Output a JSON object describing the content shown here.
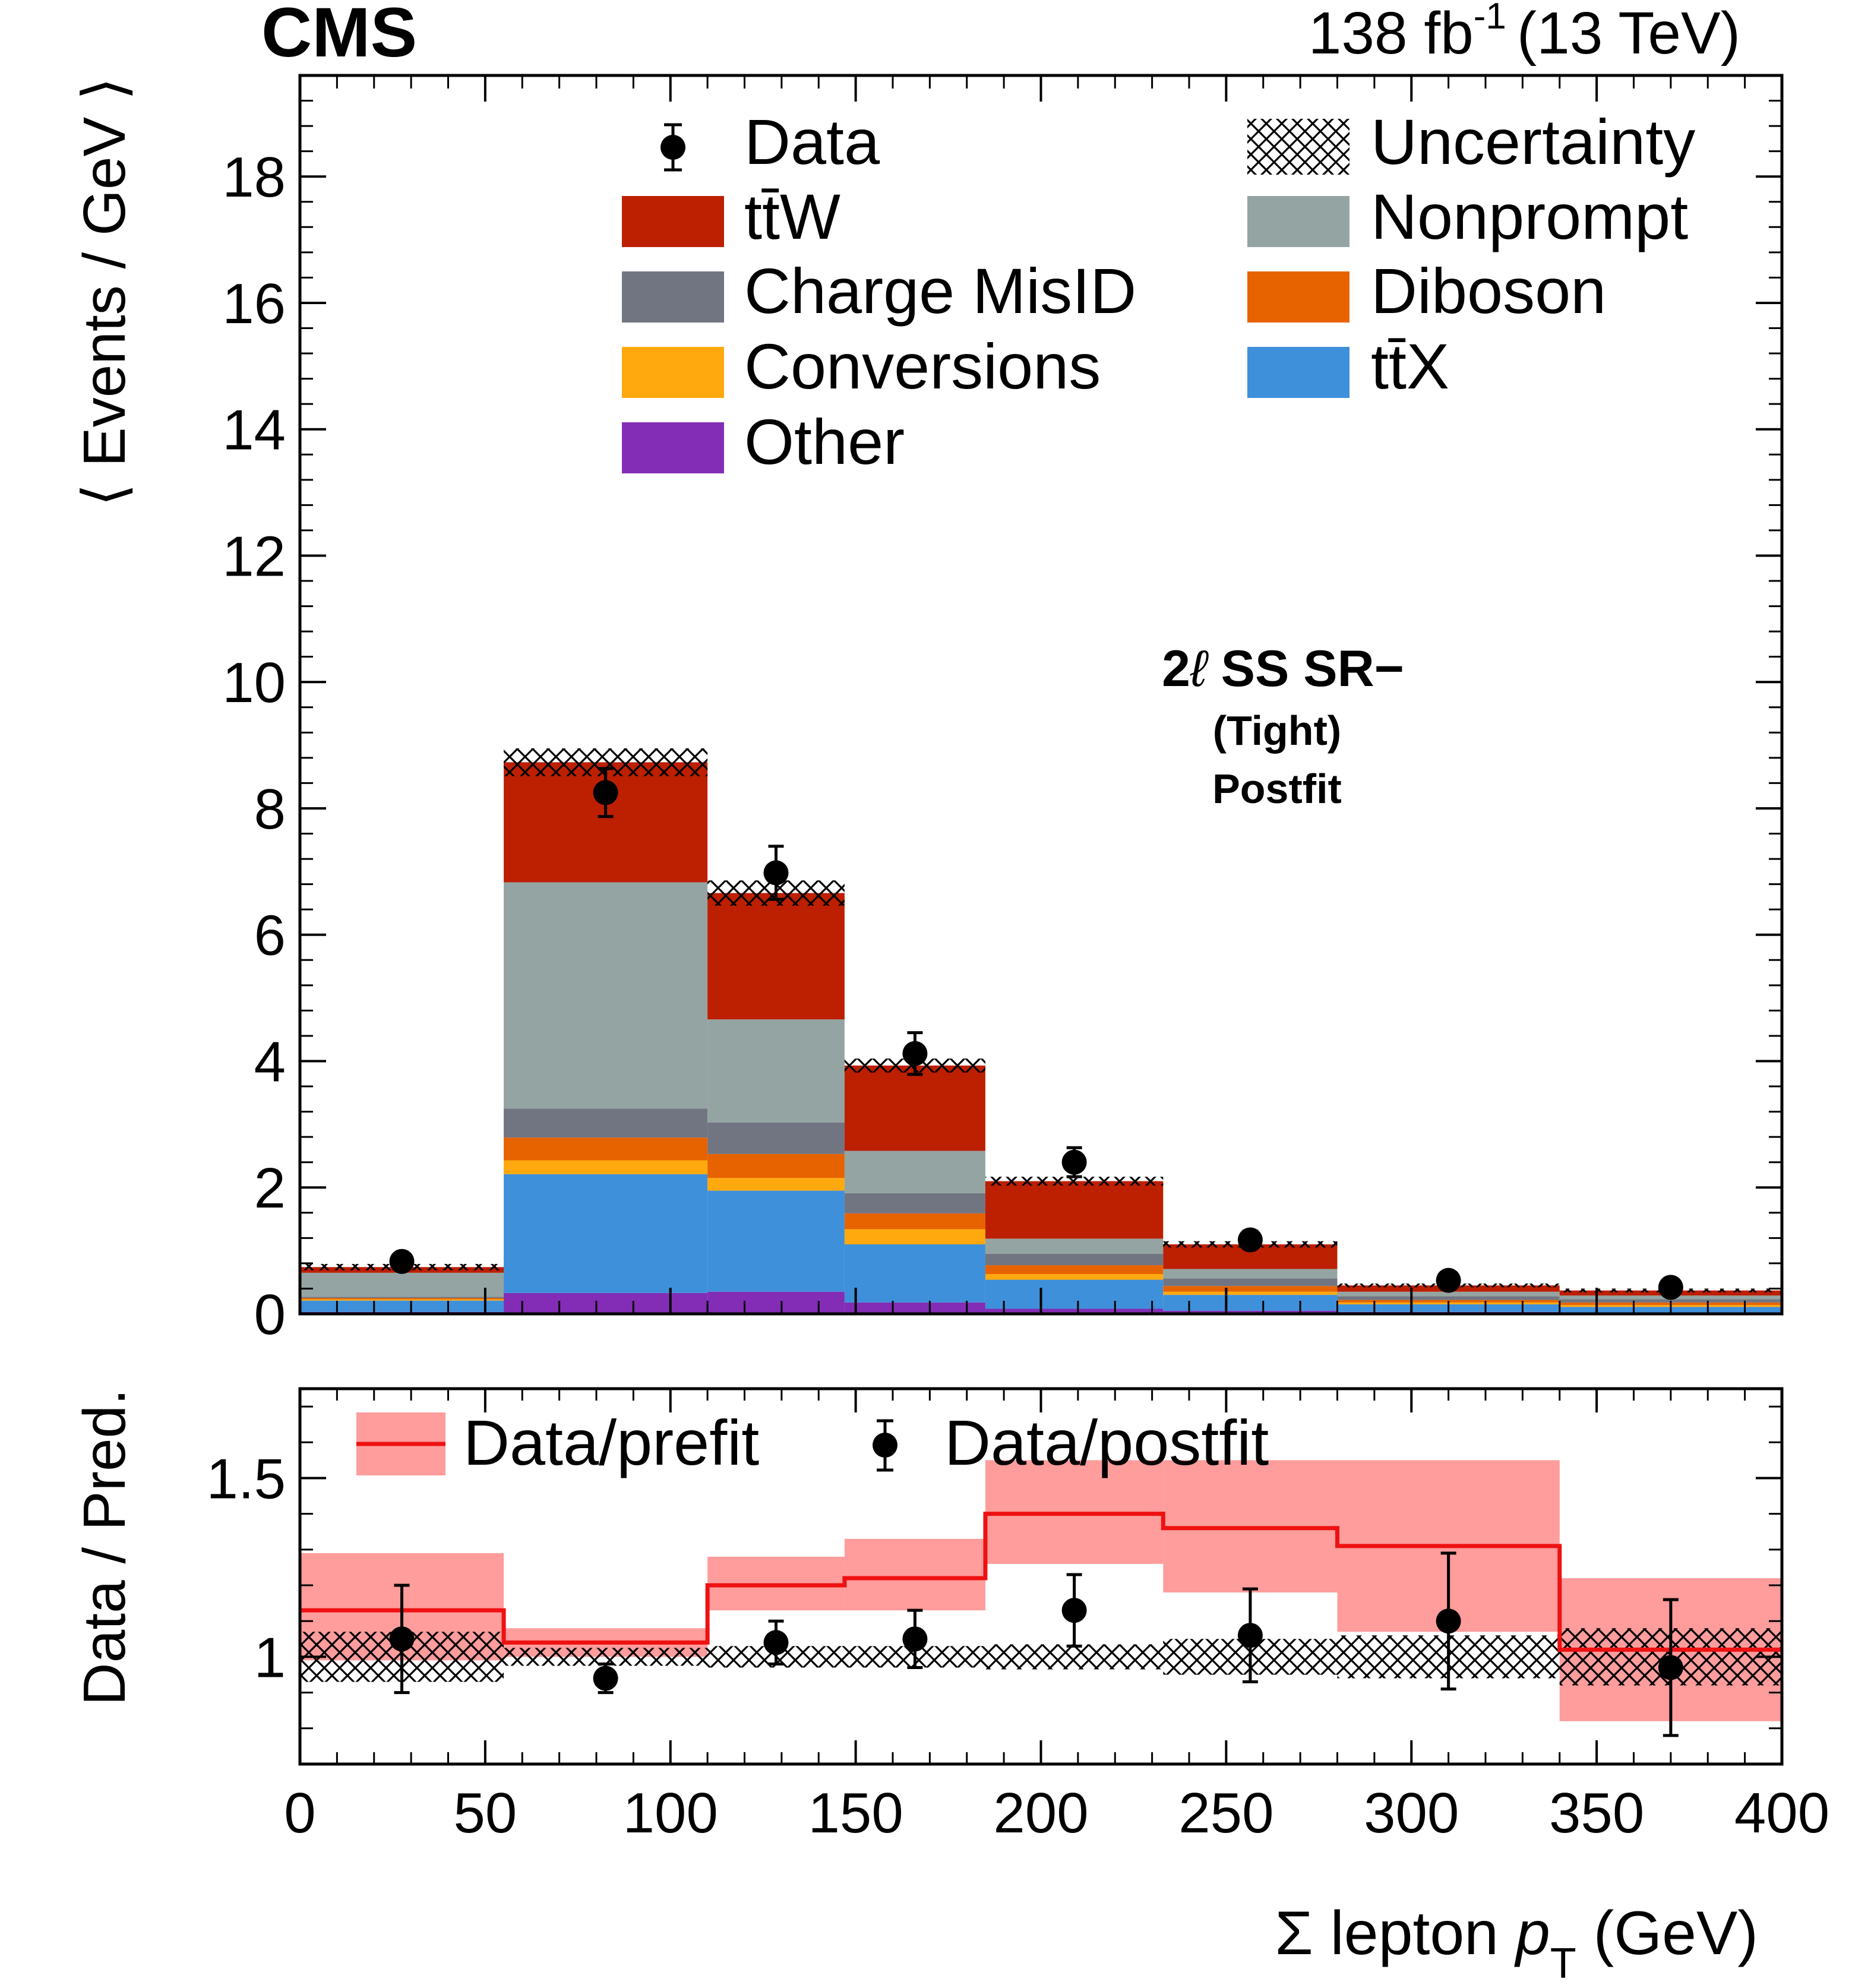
{
  "chart_data": {
    "type": "bar",
    "experiment": "CMS",
    "lumi": {
      "value": "138 fb",
      "exponent": "-1",
      "energy": "(13 TeV)"
    },
    "region": {
      "line1_prefix": "2",
      "line1_ell": "ℓ",
      "line1_suffix": " SS SR−",
      "line2": "(Tight)",
      "line3": "Postfit"
    },
    "x": {
      "bin_edges": [
        0,
        55,
        110,
        147,
        185,
        233,
        280,
        340,
        400
      ],
      "label": "Σ lepton ",
      "label_italic": "p",
      "label_sub": "T",
      "label_suffix": " (GeV)",
      "range": [
        0,
        400
      ],
      "ticks": [
        0,
        50,
        100,
        150,
        200,
        250,
        300,
        350,
        400
      ],
      "tick_labels": [
        "0",
        "50",
        "100",
        "150",
        "200",
        "250",
        "300",
        "350",
        "400"
      ]
    },
    "main": {
      "ylabel": "⟨ Events / GeV ⟩",
      "ylim": [
        0,
        19.6
      ],
      "ticks": [
        0,
        2,
        4,
        6,
        8,
        10,
        12,
        14,
        16,
        18
      ],
      "tick_labels": [
        "0",
        "2",
        "4",
        "6",
        "8",
        "10",
        "12",
        "14",
        "16",
        "18"
      ],
      "stack_order": [
        "Other",
        "tt̄X",
        "Conversions",
        "Diboson",
        "Charge MisID",
        "Nonprompt",
        "tt̄W"
      ],
      "series": [
        {
          "name": "Other",
          "color": "#832db6",
          "values": [
            0.03,
            0.33,
            0.35,
            0.18,
            0.08,
            0.05,
            0.03,
            0.02
          ]
        },
        {
          "name": "tt̄X",
          "color": "#3f90da",
          "values": [
            0.18,
            1.88,
            1.6,
            0.92,
            0.46,
            0.25,
            0.12,
            0.09
          ]
        },
        {
          "name": "Conversions",
          "color": "#ffa90e",
          "values": [
            0.02,
            0.22,
            0.2,
            0.24,
            0.09,
            0.05,
            0.03,
            0.03
          ]
        },
        {
          "name": "Diboson",
          "color": "#e76300",
          "values": [
            0.02,
            0.36,
            0.38,
            0.25,
            0.14,
            0.09,
            0.04,
            0.04
          ]
        },
        {
          "name": "Charge MisID",
          "color": "#717581",
          "values": [
            0.02,
            0.46,
            0.5,
            0.32,
            0.18,
            0.12,
            0.06,
            0.05
          ]
        },
        {
          "name": "Nonprompt",
          "color": "#94a4a2",
          "values": [
            0.38,
            3.58,
            1.63,
            0.67,
            0.24,
            0.15,
            0.07,
            0.06
          ]
        },
        {
          "name": "tt̄W",
          "color": "#bd1f01",
          "values": [
            0.09,
            1.9,
            2.0,
            1.35,
            0.91,
            0.39,
            0.1,
            0.08
          ]
        }
      ],
      "data": {
        "name": "Data",
        "values": [
          0.83,
          8.25,
          6.98,
          4.12,
          2.4,
          1.17,
          0.53,
          0.42
        ],
        "errors": [
          0.12,
          0.38,
          0.42,
          0.33,
          0.23,
          0.14,
          0.09,
          0.08
        ]
      },
      "uncertainty": {
        "name": "Uncertainty",
        "halfwidth": [
          0.05,
          0.22,
          0.2,
          0.11,
          0.07,
          0.05,
          0.03,
          0.03
        ]
      }
    },
    "ratio": {
      "ylabel": "Data / Pred.",
      "ylim": [
        0.7,
        1.75
      ],
      "ticks": [
        1.0,
        1.5
      ],
      "tick_labels": [
        "1",
        "1.5"
      ],
      "prefit": {
        "name": "Data/prefit",
        "values": [
          1.13,
          1.04,
          1.2,
          1.22,
          1.4,
          1.36,
          1.31,
          1.02
        ],
        "band_low": [
          0.99,
          1.0,
          1.13,
          1.13,
          1.26,
          1.18,
          1.07,
          0.82
        ],
        "band_high": [
          1.29,
          1.08,
          1.28,
          1.33,
          1.55,
          1.55,
          1.55,
          1.22
        ]
      },
      "postfit": {
        "name": "Data/postfit",
        "values": [
          1.05,
          0.94,
          1.04,
          1.05,
          1.13,
          1.06,
          1.1,
          0.97
        ],
        "errors": [
          0.15,
          0.04,
          0.06,
          0.08,
          0.1,
          0.13,
          0.19,
          0.19
        ]
      },
      "uncertainty_halfwidth": [
        0.07,
        0.025,
        0.03,
        0.03,
        0.035,
        0.05,
        0.06,
        0.08
      ]
    },
    "legend": {
      "main_left": [
        "Data",
        "tt̄W",
        "Charge MisID",
        "Conversions",
        "Other"
      ],
      "main_right": [
        "Uncertainty",
        "Nonprompt",
        "Diboson",
        "tt̄X"
      ],
      "ratio": [
        "Data/prefit",
        "Data/postfit"
      ]
    },
    "colors": {
      "prefit_band": "#ff9c9c",
      "prefit_line": "#ee1111",
      "data": "#000000"
    }
  }
}
